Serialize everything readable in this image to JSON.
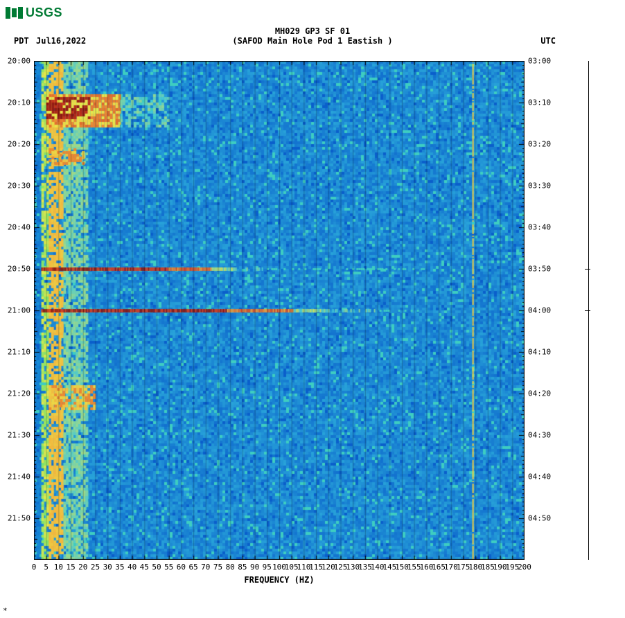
{
  "logo_text": "USGS",
  "header": {
    "title": "MH029 GP3 SF 01",
    "subtitle": "(SAFOD Main Hole Pod 1 Eastish )"
  },
  "labels": {
    "pdt": "PDT",
    "date": "Jul16,2022",
    "utc": "UTC",
    "x_axis": "FREQUENCY (HZ)"
  },
  "spectrogram": {
    "type": "heatmap",
    "x_range": [
      0,
      200
    ],
    "x_tick_step": 5,
    "y_left_ticks": [
      "20:00",
      "20:10",
      "20:20",
      "20:30",
      "20:40",
      "20:50",
      "21:00",
      "21:10",
      "21:20",
      "21:30",
      "21:40",
      "21:50"
    ],
    "y_right_ticks": [
      "03:00",
      "03:10",
      "03:20",
      "03:30",
      "03:40",
      "03:50",
      "04:00",
      "04:10",
      "04:20",
      "04:30",
      "04:40",
      "04:50"
    ],
    "time_minutes_span": 120,
    "palette": {
      "bg_low": "#0a5fcb",
      "bg_mid": "#1ea5dc",
      "bg_cyan": "#37c5e0",
      "mid_green": "#4ee07a",
      "mid_yellow": "#e8e84a",
      "high_orange": "#f4a93b",
      "hot_red": "#d43a1f",
      "dark_red": "#8a1712"
    },
    "events": [
      {
        "t_start_min": 8,
        "t_end_min": 16,
        "f_start": 5,
        "f_end": 35,
        "intensity": "hot_block",
        "note": "early cluster"
      },
      {
        "t_start_min": 21,
        "t_end_min": 25,
        "f_start": 6,
        "f_end": 20,
        "intensity": "warm",
        "note": "mid cluster"
      },
      {
        "t_start_min": 49.5,
        "t_end_min": 50.5,
        "f_start": 3,
        "f_end": 95,
        "intensity": "line_red",
        "note": "broadband 20:50"
      },
      {
        "t_start_min": 59.5,
        "t_end_min": 60.5,
        "f_start": 3,
        "f_end": 140,
        "intensity": "line_red",
        "note": "broadband 21:00"
      },
      {
        "t_start_min": 78,
        "t_end_min": 84,
        "f_start": 6,
        "f_end": 25,
        "intensity": "warm",
        "note": "late cluster"
      }
    ],
    "low_freq_column": {
      "f_start": 3,
      "f_end": 22,
      "intensity": "yellow_column"
    },
    "persistent_line": {
      "f": 179,
      "intensity": "yellow_line"
    },
    "right_marker_ticks_min": [
      50,
      60
    ]
  },
  "colors": {
    "brand_green": "#007a33",
    "background": "#ffffff",
    "text": "#000000"
  }
}
